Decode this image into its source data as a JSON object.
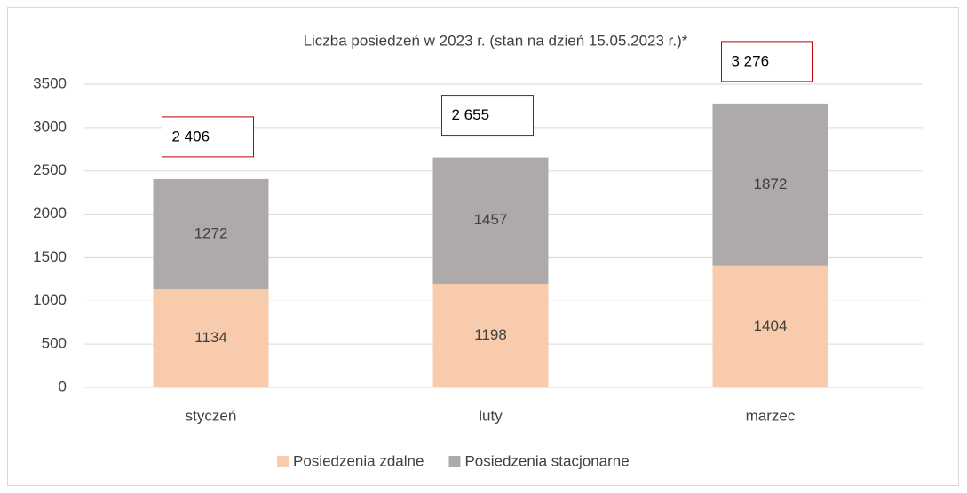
{
  "chart_data": {
    "type": "stacked_bar",
    "title": "Liczba posiedzeń w 2023 r. (stan na dzień 15.05.2023 r.)*",
    "categories": [
      "styczeń",
      "luty",
      "marzec"
    ],
    "series": [
      {
        "name": "Posiedzenia zdalne",
        "color": "#f8cbad",
        "values": [
          1134,
          1198,
          1404
        ]
      },
      {
        "name": "Posiedzenia stacjonarne",
        "color": "#aeaaaa",
        "values": [
          1272,
          1457,
          1872
        ]
      }
    ],
    "totals": [
      2406,
      2655,
      3276
    ],
    "total_labels": [
      "2 406",
      "2 655",
      "3 276"
    ],
    "ylim": [
      0,
      3500
    ],
    "yticks": [
      0,
      500,
      1000,
      1500,
      2000,
      2500,
      3000,
      3500
    ],
    "grid": true,
    "legend": "bottom"
  }
}
